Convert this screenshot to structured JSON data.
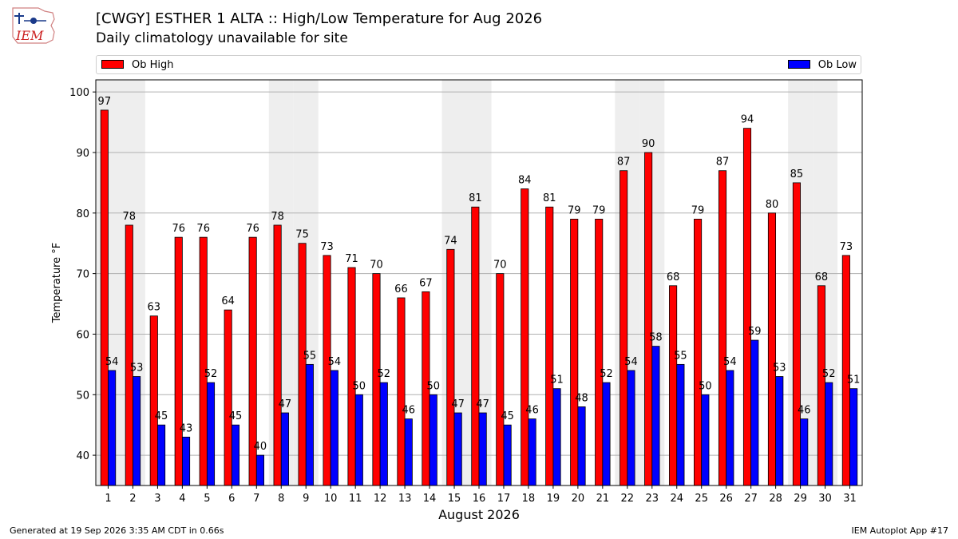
{
  "logo": {
    "text": "IEM"
  },
  "header": {
    "title": "[CWGY] ESTHER 1  ALTA :: High/Low Temperature for Aug 2026",
    "subtitle": "Daily climatology unavailable for site"
  },
  "legend": {
    "high_label": "Ob High",
    "low_label": "Ob Low"
  },
  "footer": {
    "generated": "Generated at 19 Sep 2026 3:35 AM CDT in 0.66s",
    "app": "IEM Autoplot App #17"
  },
  "colors": {
    "high": "#ff0000",
    "low": "#0000ff",
    "weekend_band": "#eeeeee",
    "grid": "#b0b0b0"
  },
  "chart_data": {
    "type": "bar",
    "categories": [
      "1",
      "2",
      "3",
      "4",
      "5",
      "6",
      "7",
      "8",
      "9",
      "10",
      "11",
      "12",
      "13",
      "14",
      "15",
      "16",
      "17",
      "18",
      "19",
      "20",
      "21",
      "22",
      "23",
      "24",
      "25",
      "26",
      "27",
      "28",
      "29",
      "30",
      "31"
    ],
    "series": [
      {
        "name": "Ob High",
        "values": [
          97,
          78,
          63,
          76,
          76,
          64,
          76,
          78,
          75,
          73,
          71,
          70,
          66,
          67,
          74,
          81,
          70,
          84,
          81,
          79,
          79,
          87,
          90,
          68,
          79,
          87,
          94,
          80,
          85,
          68,
          73
        ]
      },
      {
        "name": "Ob Low",
        "values": [
          54,
          53,
          45,
          43,
          52,
          45,
          40,
          47,
          55,
          54,
          50,
          52,
          46,
          50,
          47,
          47,
          45,
          46,
          51,
          48,
          52,
          54,
          58,
          55,
          50,
          54,
          59,
          53,
          46,
          52,
          51
        ]
      }
    ],
    "xlabel": "August 2026",
    "ylabel": "Temperature °F",
    "ylim": [
      35,
      102
    ],
    "yticks": [
      40,
      50,
      60,
      70,
      80,
      90,
      100
    ],
    "weekend_days": [
      "1",
      "2",
      "8",
      "9",
      "15",
      "16",
      "22",
      "23",
      "29",
      "30"
    ],
    "grid": true,
    "legend_position": "top"
  }
}
